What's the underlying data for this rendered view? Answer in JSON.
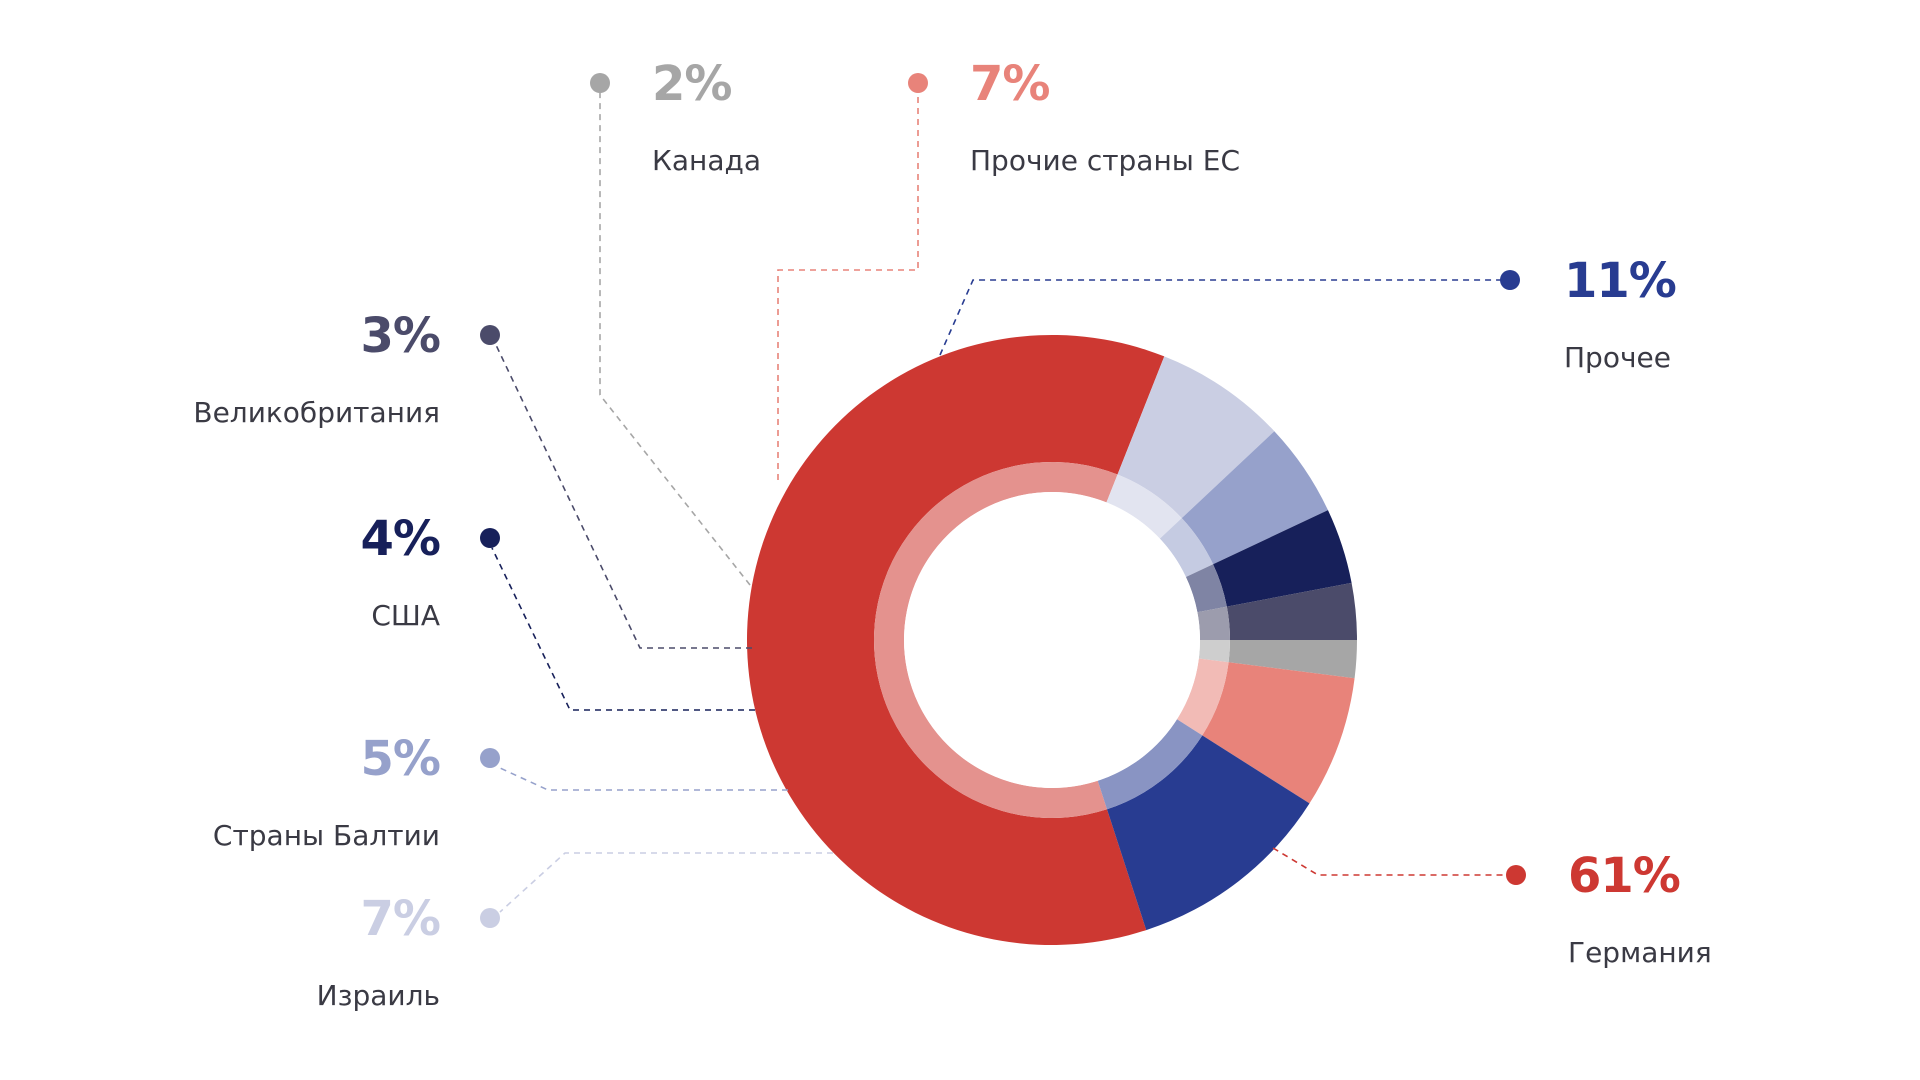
{
  "chart_data": {
    "type": "donut",
    "title": "",
    "unit": "%",
    "slices": [
      {
        "label": "Германия",
        "value": 61,
        "value_label": "61%",
        "color": "#cd3832"
      },
      {
        "label": "Израиль",
        "value": 7,
        "value_label": "7%",
        "color": "#cacee3"
      },
      {
        "label": "Страны Балтии",
        "value": 5,
        "value_label": "5%",
        "color": "#96a1cb"
      },
      {
        "label": "США",
        "value": 4,
        "value_label": "4%",
        "color": "#17205a"
      },
      {
        "label": "Великобритания",
        "value": 3,
        "value_label": "3%",
        "color": "#4b4b6a"
      },
      {
        "label": "Канада",
        "value": 2,
        "value_label": "2%",
        "color": "#a6a6a6"
      },
      {
        "label": "Прочие страны ЕС",
        "value": 7,
        "value_label": "7%",
        "color": "#e8837a"
      },
      {
        "label": "Прочее",
        "value": 11,
        "value_label": "11%",
        "color": "#283c91"
      }
    ]
  }
}
